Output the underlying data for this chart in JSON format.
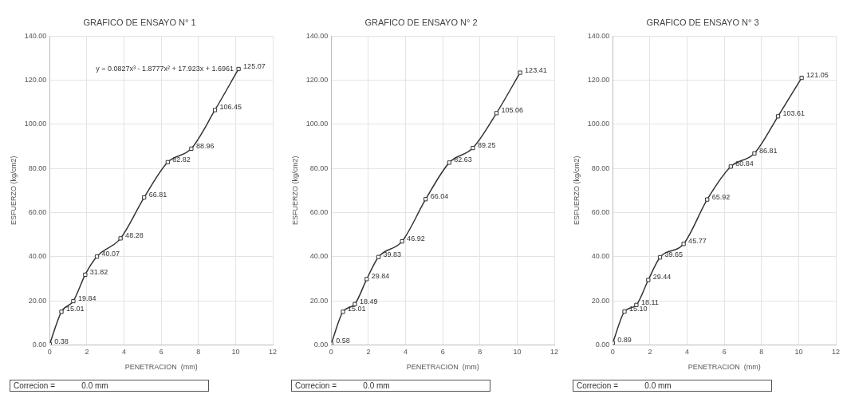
{
  "chart_data": [
    {
      "type": "line",
      "title": "GRAFICO DE ENSAYO N° 1",
      "xlabel": "PENETRACION  (mm)",
      "ylabel": "ESFUERZO (kg/cm2)",
      "x": [
        0,
        0.63,
        1.27,
        1.91,
        2.54,
        3.81,
        5.08,
        6.35,
        7.62,
        8.89,
        10.16
      ],
      "series": [
        {
          "color": "#333333",
          "values": [
            0.38,
            15.01,
            19.84,
            31.82,
            40.07,
            48.28,
            66.81,
            82.82,
            88.96,
            106.45,
            125.07
          ],
          "value_labels": [
            "0.38",
            "15.01",
            "19.84",
            "31.82",
            "40.07",
            "48.28",
            "66.81",
            "82.82",
            "88.96",
            "106.45",
            "125.07"
          ]
        }
      ],
      "xlim": [
        0,
        12
      ],
      "xticks": [
        0,
        2,
        4,
        6,
        8,
        10,
        12
      ],
      "ylim": [
        0,
        140
      ],
      "yticks": [
        {
          "value": 0,
          "label": "0.00"
        },
        {
          "value": 20,
          "label": "20.00"
        },
        {
          "value": 40,
          "label": "40.00"
        },
        {
          "value": 60,
          "label": "60.00"
        },
        {
          "value": 80,
          "label": "80.00"
        },
        {
          "value": 100,
          "label": "100.00"
        },
        {
          "value": 120,
          "label": "120.00"
        },
        {
          "value": 140,
          "label": "140.00"
        }
      ],
      "grid": true,
      "marker": "square",
      "annotations": [
        {
          "text": "y = 0.0827x³ - 1.8777x² + 17.923x + 1.6961",
          "x": 10.16,
          "y": 125.07
        },
        "Correcion =            0.0 mm"
      ]
    },
    {
      "type": "line",
      "title": "GRAFICO DE ENSAYO N° 2",
      "xlabel": "PENETRACION  (mm)",
      "ylabel": "ESFUERZO (kg/cm2)",
      "x": [
        0,
        0.63,
        1.27,
        1.91,
        2.54,
        3.81,
        5.08,
        6.35,
        7.62,
        8.89,
        10.16
      ],
      "series": [
        {
          "color": "#333333",
          "values": [
            0.58,
            15.01,
            18.49,
            29.84,
            39.83,
            46.92,
            66.04,
            82.63,
            89.25,
            105.06,
            123.41
          ],
          "value_labels": [
            "0.58",
            "15.01",
            "18.49",
            "29.84",
            "39.83",
            "46.92",
            "66.04",
            "82.63",
            "89.25",
            "105.06",
            "123.41"
          ]
        }
      ],
      "xlim": [
        0,
        12
      ],
      "xticks": [
        0,
        2,
        4,
        6,
        8,
        10,
        12
      ],
      "ylim": [
        0,
        140
      ],
      "yticks": [
        {
          "value": 0,
          "label": "0.00"
        },
        {
          "value": 20,
          "label": "20.00"
        },
        {
          "value": 40,
          "label": "40.00"
        },
        {
          "value": 60,
          "label": "60.00"
        },
        {
          "value": 80,
          "label": "80.00"
        },
        {
          "value": 100,
          "label": "100.00"
        },
        {
          "value": 120,
          "label": "120.00"
        },
        {
          "value": 140,
          "label": "140.00"
        }
      ],
      "grid": true,
      "marker": "square",
      "annotations": [
        "Correcion =            0.0 mm"
      ]
    },
    {
      "type": "line",
      "title": "GRAFICO DE ENSAYO N° 3",
      "xlabel": "PENETRACION  (mm)",
      "ylabel": "ESFUERZO (kg/cm2)",
      "x": [
        0,
        0.63,
        1.27,
        1.91,
        2.54,
        3.81,
        5.08,
        6.35,
        7.62,
        8.89,
        10.16
      ],
      "series": [
        {
          "color": "#333333",
          "values": [
            0.89,
            15.1,
            18.11,
            29.44,
            39.65,
            45.77,
            65.92,
            80.84,
            86.81,
            103.61,
            121.05
          ],
          "value_labels": [
            "0.89",
            "15.10",
            "18.11",
            "29.44",
            "39.65",
            "45.77",
            "65.92",
            "80.84",
            "86.81",
            "103.61",
            "121.05"
          ]
        }
      ],
      "xlim": [
        0,
        12
      ],
      "xticks": [
        0,
        2,
        4,
        6,
        8,
        10,
        12
      ],
      "ylim": [
        0,
        140
      ],
      "yticks": [
        {
          "value": 0,
          "label": "0.00"
        },
        {
          "value": 20,
          "label": "20.00"
        },
        {
          "value": 40,
          "label": "40.00"
        },
        {
          "value": 60,
          "label": "60.00"
        },
        {
          "value": 80,
          "label": "80.00"
        },
        {
          "value": 100,
          "label": "100.00"
        },
        {
          "value": 120,
          "label": "120.00"
        },
        {
          "value": 140,
          "label": "140.00"
        }
      ],
      "grid": true,
      "marker": "square",
      "annotations": [
        "Correcion =            0.0 mm"
      ]
    }
  ]
}
